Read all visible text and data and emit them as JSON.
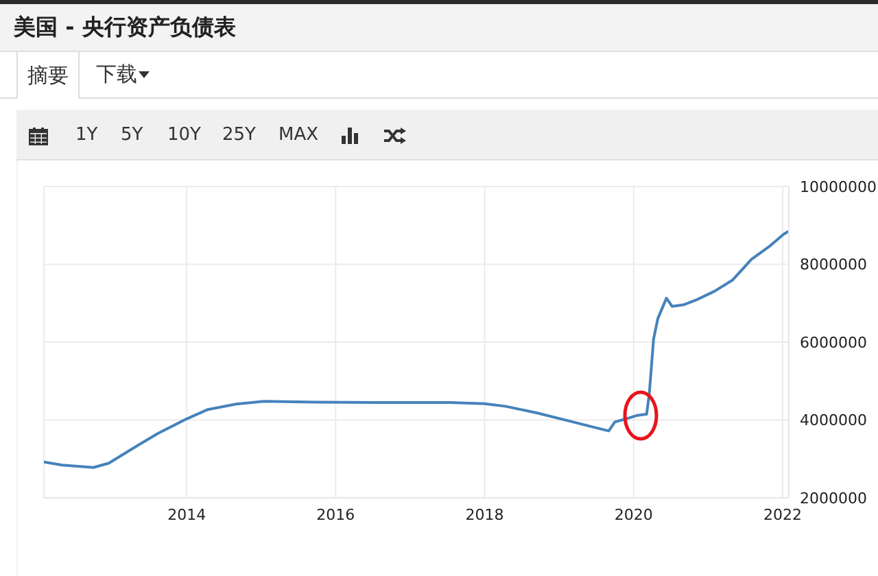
{
  "chart_data": {
    "type": "line",
    "title": "美国 - 央行资产负债表",
    "annotations": [
      "摘要",
      "下载",
      "1Y",
      "5Y",
      "10Y",
      "25Y",
      "MAX"
    ],
    "x": [
      "2012-02-01",
      "2012-05-01",
      "2012-10-01",
      "2012-12-15",
      "2013-05-01",
      "2013-08-15",
      "2014-01-01",
      "2014-04-15",
      "2014-09-01",
      "2015-01-15",
      "2015-10-01",
      "2016-07-15",
      "2017-07-15",
      "2018-01-01",
      "2018-04-15",
      "2018-09-15",
      "2019-02-15",
      "2019-07-01",
      "2019-09-01",
      "2019-10-01",
      "2019-11-25",
      "2020-01-20",
      "2020-03-05",
      "2020-03-18",
      "2020-04-08",
      "2020-04-29",
      "2020-06-10",
      "2020-07-08",
      "2020-09-01",
      "2020-11-01",
      "2021-02-01",
      "2021-05-01",
      "2021-08-01",
      "2021-11-01",
      "2022-01-05",
      "2022-01-26"
    ],
    "values": [
      2920000,
      2840000,
      2780000,
      2890000,
      3330000,
      3660000,
      4030000,
      4270000,
      4410000,
      4480000,
      4460000,
      4450000,
      4450000,
      4420000,
      4350000,
      4180000,
      3980000,
      3800000,
      3720000,
      3950000,
      4030000,
      4120000,
      4150000,
      4680000,
      6080000,
      6610000,
      7130000,
      6920000,
      6960000,
      7080000,
      7310000,
      7600000,
      8130000,
      8480000,
      8770000,
      8840000
    ],
    "color": "#4682bb",
    "xlim": [
      "2012-02-01",
      "2022-01-31"
    ],
    "xticks": [
      "2014",
      "2016",
      "2018",
      "2020",
      "2022"
    ],
    "ylim": [
      2000000,
      10000000
    ],
    "yticks": [
      2000000,
      4000000,
      6000000,
      8000000,
      10000000
    ],
    "grid": true
  }
}
